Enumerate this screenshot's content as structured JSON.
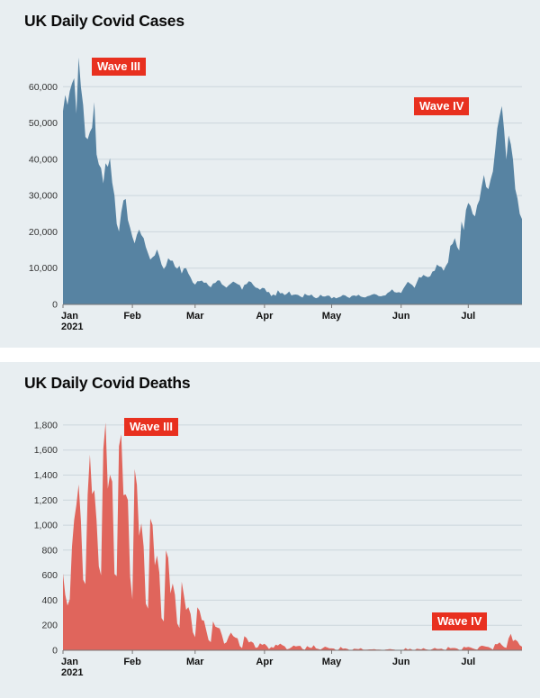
{
  "page": {
    "background": "#ffffff",
    "panel_background": "#e8eef1"
  },
  "annotation_style": {
    "background": "#e8301f",
    "text_color": "#ffffff"
  },
  "chart_data": [
    {
      "type": "area",
      "title": "UK Daily Covid Cases",
      "color": "#5783a2",
      "grid_color": "#ccd6dc",
      "axis_color": "#777777",
      "grid": true,
      "legend": "none",
      "ylim": [
        0,
        70000
      ],
      "yticks": [
        0,
        10000,
        20000,
        30000,
        40000,
        50000,
        60000
      ],
      "x_months": [
        {
          "label": "Jan",
          "sub": "2021",
          "day": 0
        },
        {
          "label": "Feb",
          "day": 31
        },
        {
          "label": "Mar",
          "day": 59
        },
        {
          "label": "Apr",
          "day": 90
        },
        {
          "label": "May",
          "day": 120
        },
        {
          "label": "Jun",
          "day": 151
        },
        {
          "label": "Jul",
          "day": 181
        }
      ],
      "annotations": [
        {
          "label": "Wave III",
          "near": "early January peak, ~68,000 cases"
        },
        {
          "label": "Wave IV",
          "near": "mid-July peak, ~54,000 cases"
        }
      ],
      "values": [
        53285,
        57725,
        54990,
        58784,
        60916,
        62322,
        52618,
        68053,
        59937,
        54940,
        46169,
        45533,
        47525,
        48682,
        55761,
        41346,
        38598,
        37535,
        33355,
        38905,
        37892,
        40261,
        33552,
        30004,
        22195,
        20089,
        25308,
        28680,
        29079,
        23275,
        21088,
        18607,
        16840,
        19202,
        20634,
        19114,
        18262,
        15845,
        14104,
        12364,
        13013,
        13494,
        15144,
        13308,
        10972,
        9765,
        10625,
        12718,
        12057,
        12027,
        10406,
        9834,
        10641,
        8489,
        9938,
        9985,
        8523,
        7434,
        6035,
        5455,
        6391,
        6385,
        6573,
        5947,
        6040,
        5177,
        4712,
        5766,
        5926,
        6609,
        6609,
        5534,
        5089,
        4618,
        5294,
        5758,
        6303,
        5948,
        5587,
        5312,
        4052,
        5379,
        5605,
        6397,
        6187,
        5312,
        4654,
        4481,
        4052,
        4578,
        4479,
        3423,
        3402,
        2297,
        2762,
        2379,
        3919,
        3030,
        3150,
        2589,
        2963,
        3568,
        2472,
        2672,
        2729,
        2596,
        2206,
        1882,
        2963,
        2524,
        2396,
        2729,
        2061,
        1712,
        1946,
        2685,
        2213,
        2166,
        2445,
        2381,
        1649,
        2027,
        1671,
        1946,
        2144,
        2613,
        2490,
        2047,
        1770,
        2357,
        2474,
        2284,
        2657,
        2193,
        1979,
        1926,
        2270,
        2412,
        2696,
        2874,
        2694,
        2287,
        2235,
        2439,
        2493,
        3180,
        3542,
        4182,
        3398,
        3240,
        3383,
        3165,
        4330,
        5274,
        6238,
        5765,
        5341,
        4564,
        6048,
        7540,
        7393,
        8125,
        7738,
        7490,
        7742,
        9055,
        9284,
        11007,
        10476,
        10321,
        9284,
        10633,
        11625,
        16135,
        16703,
        18270,
        15810,
        14876,
        22868,
        20479,
        26068,
        27989,
        27125,
        24885,
        24248,
        27334,
        28773,
        32548,
        35707,
        32367,
        31772,
        34471,
        36660,
        42302,
        48553,
        51870,
        54674,
        48161,
        39950,
        46558,
        44104,
        39906,
        31795,
        29173,
        24950,
        23511
      ]
    },
    {
      "type": "area",
      "title": "UK Daily Covid Deaths",
      "color": "#e0655c",
      "grid_color": "#ccd6dc",
      "axis_color": "#777777",
      "grid": true,
      "legend": "none",
      "ylim": [
        0,
        1900
      ],
      "yticks": [
        0,
        200,
        400,
        600,
        800,
        1000,
        1200,
        1400,
        1600,
        1800
      ],
      "x_months": [
        {
          "label": "Jan",
          "sub": "2021",
          "day": 0
        },
        {
          "label": "Feb",
          "day": 31
        },
        {
          "label": "Mar",
          "day": 59
        },
        {
          "label": "Apr",
          "day": 90
        },
        {
          "label": "May",
          "day": 120
        },
        {
          "label": "Jun",
          "day": 151
        },
        {
          "label": "Jul",
          "day": 181
        }
      ],
      "annotations": [
        {
          "label": "Wave III",
          "near": "late-January peak, ~1,800 deaths"
        },
        {
          "label": "Wave IV",
          "near": "late-July uptick, ~130 deaths"
        }
      ],
      "values": [
        613,
        445,
        357,
        407,
        830,
        1041,
        1162,
        1325,
        1035,
        563,
        529,
        1243,
        1564,
        1248,
        1280,
        1035,
        671,
        599,
        1610,
        1820,
        1290,
        1401,
        1348,
        610,
        592,
        1631,
        1725,
        1239,
        1245,
        1200,
        587,
        406,
        1449,
        1322,
        915,
        1014,
        828,
        373,
        333,
        1052,
        1001,
        678,
        758,
        621,
        258,
        230,
        799,
        738,
        454,
        533,
        445,
        215,
        178,
        548,
        442,
        323,
        345,
        290,
        144,
        104,
        343,
        315,
        242,
        236,
        158,
        82,
        65,
        231,
        190,
        181,
        175,
        121,
        52,
        64,
        110,
        141,
        113,
        101,
        96,
        33,
        17,
        112,
        98,
        63,
        70,
        58,
        19,
        23,
        56,
        43,
        52,
        35,
        10,
        26,
        20,
        45,
        38,
        53,
        40,
        32,
        7,
        13,
        23,
        38,
        30,
        34,
        35,
        10,
        4,
        33,
        22,
        18,
        40,
        15,
        11,
        6,
        17,
        29,
        22,
        15,
        15,
        14,
        1,
        4,
        27,
        13,
        15,
        11,
        2,
        1,
        12,
        11,
        9,
        17,
        6,
        4,
        5,
        7,
        7,
        9,
        6,
        5,
        4,
        1,
        5,
        7,
        10,
        7,
        6,
        1,
        1,
        0,
        1,
        18,
        6,
        13,
        4,
        1,
        13,
        10,
        7,
        17,
        8,
        4,
        3,
        10,
        19,
        11,
        11,
        14,
        5,
        3,
        27,
        16,
        18,
        18,
        14,
        3,
        3,
        28,
        22,
        27,
        22,
        15,
        9,
        6,
        28,
        37,
        33,
        29,
        26,
        17,
        6,
        50,
        49,
        63,
        41,
        25,
        19,
        96,
        131,
        73,
        85,
        71,
        40,
        29
      ]
    }
  ]
}
